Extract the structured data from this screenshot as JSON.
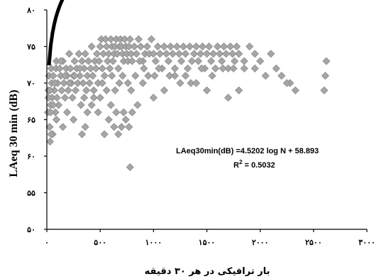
{
  "chart_data": {
    "type": "scatter",
    "title": "",
    "xlabel": "بار ترافیکی در هر ۳۰ دقیقه",
    "ylabel": "LAeq 30 min (dB)",
    "xlim": [
      0,
      3000
    ],
    "ylim": [
      50,
      80
    ],
    "x_ticks": [
      0,
      500,
      1000,
      1500,
      2000,
      2500,
      3000
    ],
    "x_tick_labels": [
      "۰",
      "۵۰۰",
      "۱۰۰۰",
      "۱۵۰۰",
      "۲۰۰۰",
      "۲۵۰۰",
      "۳۰۰۰"
    ],
    "y_ticks": [
      50,
      55,
      60,
      65,
      70,
      75,
      80
    ],
    "y_tick_labels": [
      "۵۰",
      "۵۵",
      "۶۰",
      "۶۵",
      "۷۰",
      "۷۵",
      "۸۰"
    ],
    "grid": false,
    "marker_color": "#a6a6a6",
    "marker_edge_color": "#8a8a8a",
    "trendline_color": "#000000",
    "annotations": {
      "equation": "LAeq30min(dB) =4.5202 log N + 58.893",
      "r2_label": "R",
      "r2_sup": "2",
      "r2_value": " = 0.5032"
    },
    "trendline": {
      "type": "log",
      "a": 4.5202,
      "b": 58.893,
      "x_range": [
        20,
        2620
      ]
    },
    "series": [
      {
        "type": "scatter",
        "points": [
          [
            10,
            66
          ],
          [
            15,
            69
          ],
          [
            20,
            71
          ],
          [
            25,
            64
          ],
          [
            30,
            62
          ],
          [
            35,
            67
          ],
          [
            40,
            72
          ],
          [
            45,
            70
          ],
          [
            50,
            68
          ],
          [
            55,
            63
          ],
          [
            60,
            71
          ],
          [
            70,
            69
          ],
          [
            80,
            66
          ],
          [
            85,
            72
          ],
          [
            90,
            73
          ],
          [
            100,
            70
          ],
          [
            110,
            67
          ],
          [
            120,
            72
          ],
          [
            130,
            71
          ],
          [
            140,
            69
          ],
          [
            150,
            73
          ],
          [
            160,
            70
          ],
          [
            170,
            68
          ],
          [
            180,
            72
          ],
          [
            190,
            71
          ],
          [
            200,
            69
          ],
          [
            210,
            74
          ],
          [
            220,
            72
          ],
          [
            230,
            70
          ],
          [
            240,
            68
          ],
          [
            250,
            71
          ],
          [
            260,
            73
          ],
          [
            270,
            69
          ],
          [
            280,
            72
          ],
          [
            290,
            70
          ],
          [
            300,
            74
          ],
          [
            310,
            71
          ],
          [
            320,
            67
          ],
          [
            330,
            73
          ],
          [
            340,
            70
          ],
          [
            350,
            72
          ],
          [
            360,
            74
          ],
          [
            370,
            69
          ],
          [
            380,
            71
          ],
          [
            390,
            73
          ],
          [
            400,
            70
          ],
          [
            410,
            72
          ],
          [
            420,
            75
          ],
          [
            430,
            71
          ],
          [
            440,
            69
          ],
          [
            450,
            73
          ],
          [
            460,
            72
          ],
          [
            470,
            74
          ],
          [
            480,
            70
          ],
          [
            490,
            73
          ],
          [
            500,
            75
          ],
          [
            510,
            76
          ],
          [
            520,
            72
          ],
          [
            530,
            74
          ],
          [
            540,
            71
          ],
          [
            550,
            76
          ],
          [
            560,
            75
          ],
          [
            570,
            73
          ],
          [
            580,
            74
          ],
          [
            590,
            72
          ],
          [
            600,
            76
          ],
          [
            610,
            75
          ],
          [
            620,
            73
          ],
          [
            630,
            74
          ],
          [
            640,
            75
          ],
          [
            650,
            76
          ],
          [
            660,
            74
          ],
          [
            670,
            72
          ],
          [
            680,
            75
          ],
          [
            690,
            76
          ],
          [
            700,
            75
          ],
          [
            710,
            74
          ],
          [
            720,
            73
          ],
          [
            730,
            76
          ],
          [
            740,
            75
          ],
          [
            750,
            74
          ],
          [
            760,
            73
          ],
          [
            770,
            75
          ],
          [
            780,
            76
          ],
          [
            790,
            74
          ],
          [
            800,
            73
          ],
          [
            820,
            75
          ],
          [
            840,
            74
          ],
          [
            860,
            76
          ],
          [
            880,
            75
          ],
          [
            900,
            73
          ],
          [
            920,
            74
          ],
          [
            940,
            75
          ],
          [
            960,
            74
          ],
          [
            980,
            76
          ],
          [
            1000,
            74
          ],
          [
            1020,
            73
          ],
          [
            1040,
            75
          ],
          [
            1060,
            74
          ],
          [
            1080,
            72
          ],
          [
            1100,
            75
          ],
          [
            1120,
            74
          ],
          [
            1140,
            73
          ],
          [
            1160,
            75
          ],
          [
            1180,
            74
          ],
          [
            1200,
            72
          ],
          [
            1220,
            75
          ],
          [
            1240,
            74
          ],
          [
            1260,
            73
          ],
          [
            1280,
            75
          ],
          [
            1300,
            74
          ],
          [
            1320,
            72
          ],
          [
            1340,
            75
          ],
          [
            1360,
            73
          ],
          [
            1380,
            74
          ],
          [
            1400,
            75
          ],
          [
            1420,
            73
          ],
          [
            1440,
            74
          ],
          [
            1460,
            75
          ],
          [
            1480,
            72
          ],
          [
            1500,
            74
          ],
          [
            1520,
            75
          ],
          [
            1540,
            73
          ],
          [
            1560,
            74
          ],
          [
            1580,
            72
          ],
          [
            1600,
            75
          ],
          [
            1620,
            74
          ],
          [
            1640,
            73
          ],
          [
            1660,
            75
          ],
          [
            1680,
            74
          ],
          [
            1700,
            72
          ],
          [
            1720,
            75
          ],
          [
            1740,
            74
          ],
          [
            1760,
            73
          ],
          [
            1780,
            75
          ],
          [
            1800,
            74
          ],
          [
            1850,
            73
          ],
          [
            1900,
            75
          ],
          [
            1950,
            74
          ],
          [
            2000,
            73
          ],
          [
            2100,
            74
          ],
          [
            2200,
            71
          ],
          [
            2280,
            70
          ],
          [
            2330,
            69
          ],
          [
            2600,
            69
          ],
          [
            2610,
            71
          ],
          [
            2620,
            73
          ],
          [
            15,
            68
          ],
          [
            25,
            64
          ],
          [
            40,
            63
          ],
          [
            60,
            67
          ],
          [
            90,
            65
          ],
          [
            150,
            64
          ],
          [
            190,
            66
          ],
          [
            250,
            65
          ],
          [
            330,
            63
          ],
          [
            360,
            64
          ],
          [
            420,
            67
          ],
          [
            480,
            66
          ],
          [
            540,
            63
          ],
          [
            580,
            65
          ],
          [
            600,
            67
          ],
          [
            630,
            64
          ],
          [
            650,
            66
          ],
          [
            670,
            63
          ],
          [
            700,
            64
          ],
          [
            720,
            66
          ],
          [
            740,
            65
          ],
          [
            770,
            64
          ],
          [
            800,
            66
          ],
          [
            850,
            67
          ],
          [
            900,
            70
          ],
          [
            1000,
            68
          ],
          [
            1100,
            69
          ],
          [
            1200,
            71
          ],
          [
            1250,
            70
          ],
          [
            1350,
            70
          ],
          [
            1400,
            70
          ],
          [
            1500,
            69
          ],
          [
            1700,
            68
          ],
          [
            1800,
            69
          ],
          [
            2250,
            70
          ],
          [
            30,
            69
          ],
          [
            35,
            66
          ],
          [
            75,
            70
          ],
          [
            95,
            68
          ],
          [
            130,
            73
          ],
          [
            170,
            71
          ],
          [
            210,
            70
          ],
          [
            260,
            71
          ],
          [
            310,
            72
          ],
          [
            350,
            68
          ],
          [
            380,
            66
          ],
          [
            440,
            68
          ],
          [
            500,
            68
          ],
          [
            520,
            70
          ],
          [
            560,
            69
          ],
          [
            610,
            71
          ],
          [
            640,
            69
          ],
          [
            680,
            70
          ],
          [
            710,
            71
          ],
          [
            760,
            70
          ],
          [
            790,
            69
          ],
          [
            830,
            71
          ],
          [
            870,
            73
          ],
          [
            910,
            72
          ],
          [
            950,
            71
          ],
          [
            1010,
            71
          ],
          [
            1050,
            72
          ],
          [
            1150,
            71
          ],
          [
            1300,
            71
          ],
          [
            1450,
            72
          ],
          [
            1550,
            71
          ],
          [
            1650,
            72
          ],
          [
            1750,
            72
          ],
          [
            1850,
            72
          ],
          [
            1950,
            72
          ],
          [
            2050,
            71
          ],
          [
            2150,
            72
          ],
          [
            780,
            58.5
          ]
        ]
      }
    ]
  }
}
